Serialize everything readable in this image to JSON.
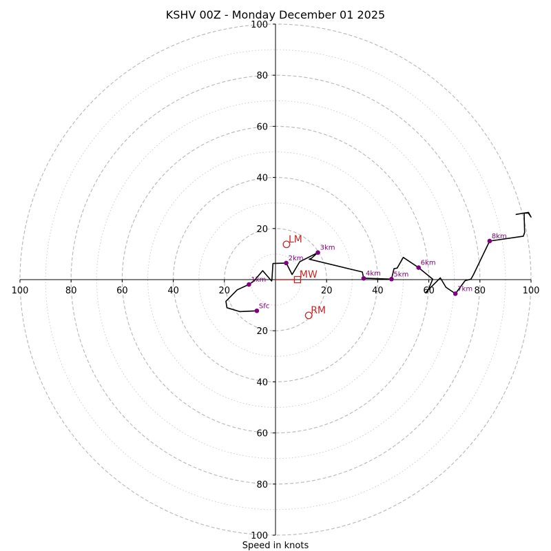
{
  "chart_data": {
    "type": "hodograph",
    "title": "KSHV 00Z - Monday December 01 2025",
    "xlabel": "Speed in knots",
    "range": 100,
    "rings_dashed": [
      20,
      40,
      60,
      80,
      100
    ],
    "rings_dotted": [
      10,
      30,
      50,
      70,
      90
    ],
    "x_ticks": [
      {
        "value": -100,
        "label": "100"
      },
      {
        "value": -80,
        "label": "80"
      },
      {
        "value": -60,
        "label": "60"
      },
      {
        "value": -40,
        "label": "40"
      },
      {
        "value": -20,
        "label": "20"
      },
      {
        "value": 20,
        "label": "20"
      },
      {
        "value": 40,
        "label": "40"
      },
      {
        "value": 60,
        "label": "60"
      },
      {
        "value": 80,
        "label": "80"
      },
      {
        "value": 100,
        "label": "100"
      }
    ],
    "y_ticks": [
      {
        "value": 100,
        "label": "100"
      },
      {
        "value": 80,
        "label": "80"
      },
      {
        "value": 60,
        "label": "60"
      },
      {
        "value": 40,
        "label": "40"
      },
      {
        "value": 20,
        "label": "20"
      },
      {
        "value": -20,
        "label": "20"
      },
      {
        "value": -40,
        "label": "40"
      },
      {
        "value": -60,
        "label": "60"
      },
      {
        "value": -80,
        "label": "80"
      },
      {
        "value": -100,
        "label": "100"
      }
    ],
    "colors": {
      "trace": "#000000",
      "heights": "#800080",
      "motion": "#cc2222",
      "grid": "#bbbbbb",
      "axis": "#000000"
    },
    "trace": [
      [
        -7.3,
        -12.2
      ],
      [
        -14,
        -12.5
      ],
      [
        -19,
        -11
      ],
      [
        -19.4,
        -8.5
      ],
      [
        -15,
        -4
      ],
      [
        -10.4,
        -1.9
      ],
      [
        -8.5,
        -0.6
      ],
      [
        -5,
        3.5
      ],
      [
        -2,
        0
      ],
      [
        -1.5,
        -0.5
      ],
      [
        -1.4,
        0
      ],
      [
        -1,
        6.3
      ],
      [
        4.2,
        6.5
      ],
      [
        6.5,
        2
      ],
      [
        9.5,
        7
      ],
      [
        16.6,
        10.6
      ],
      [
        14,
        8.3
      ],
      [
        13.2,
        8
      ],
      [
        34,
        3
      ],
      [
        34.5,
        0.5
      ],
      [
        36,
        0.5
      ],
      [
        45.4,
        0.2
      ],
      [
        46.4,
        4.3
      ],
      [
        47.6,
        4.5
      ],
      [
        50,
        8.7
      ],
      [
        56,
        4.7
      ],
      [
        61.5,
        0.2
      ],
      [
        60,
        -3.5
      ],
      [
        59.5,
        -4.5
      ],
      [
        58.8,
        -5
      ],
      [
        64.5,
        0.7
      ],
      [
        66.7,
        -3
      ],
      [
        70.4,
        -5.5
      ],
      [
        74.2,
        -0.4
      ],
      [
        76.5,
        0.2
      ],
      [
        77.5,
        2
      ],
      [
        83.8,
        15.1
      ],
      [
        97,
        17
      ],
      [
        97.5,
        18.5
      ],
      [
        97.3,
        26
      ],
      [
        99,
        26
      ],
      [
        100,
        24.5
      ],
      [
        99,
        26.3
      ],
      [
        97,
        26
      ],
      [
        94,
        25.5
      ]
    ],
    "heights": [
      {
        "label": "Sfc",
        "u": -7.3,
        "v": -12.2
      },
      {
        "label": "1km",
        "u": -10.4,
        "v": -1.9
      },
      {
        "label": "2km",
        "u": 4.2,
        "v": 6.5
      },
      {
        "label": "3km",
        "u": 16.6,
        "v": 10.6
      },
      {
        "label": "4km",
        "u": 34.5,
        "v": 0.5
      },
      {
        "label": "5km",
        "u": 45.4,
        "v": 0.2
      },
      {
        "label": "6km",
        "u": 56,
        "v": 4.7
      },
      {
        "label": "7km",
        "u": 70.4,
        "v": -5.5
      },
      {
        "label": "8km",
        "u": 83.8,
        "v": 15.1
      }
    ],
    "storm_motion": {
      "LM": {
        "label": "LM",
        "u": 4.3,
        "v": 13.8
      },
      "RM": {
        "label": "RM",
        "u": 13,
        "v": -14
      },
      "MW": {
        "label": "MW",
        "u": 8.6,
        "v": 0
      }
    }
  }
}
